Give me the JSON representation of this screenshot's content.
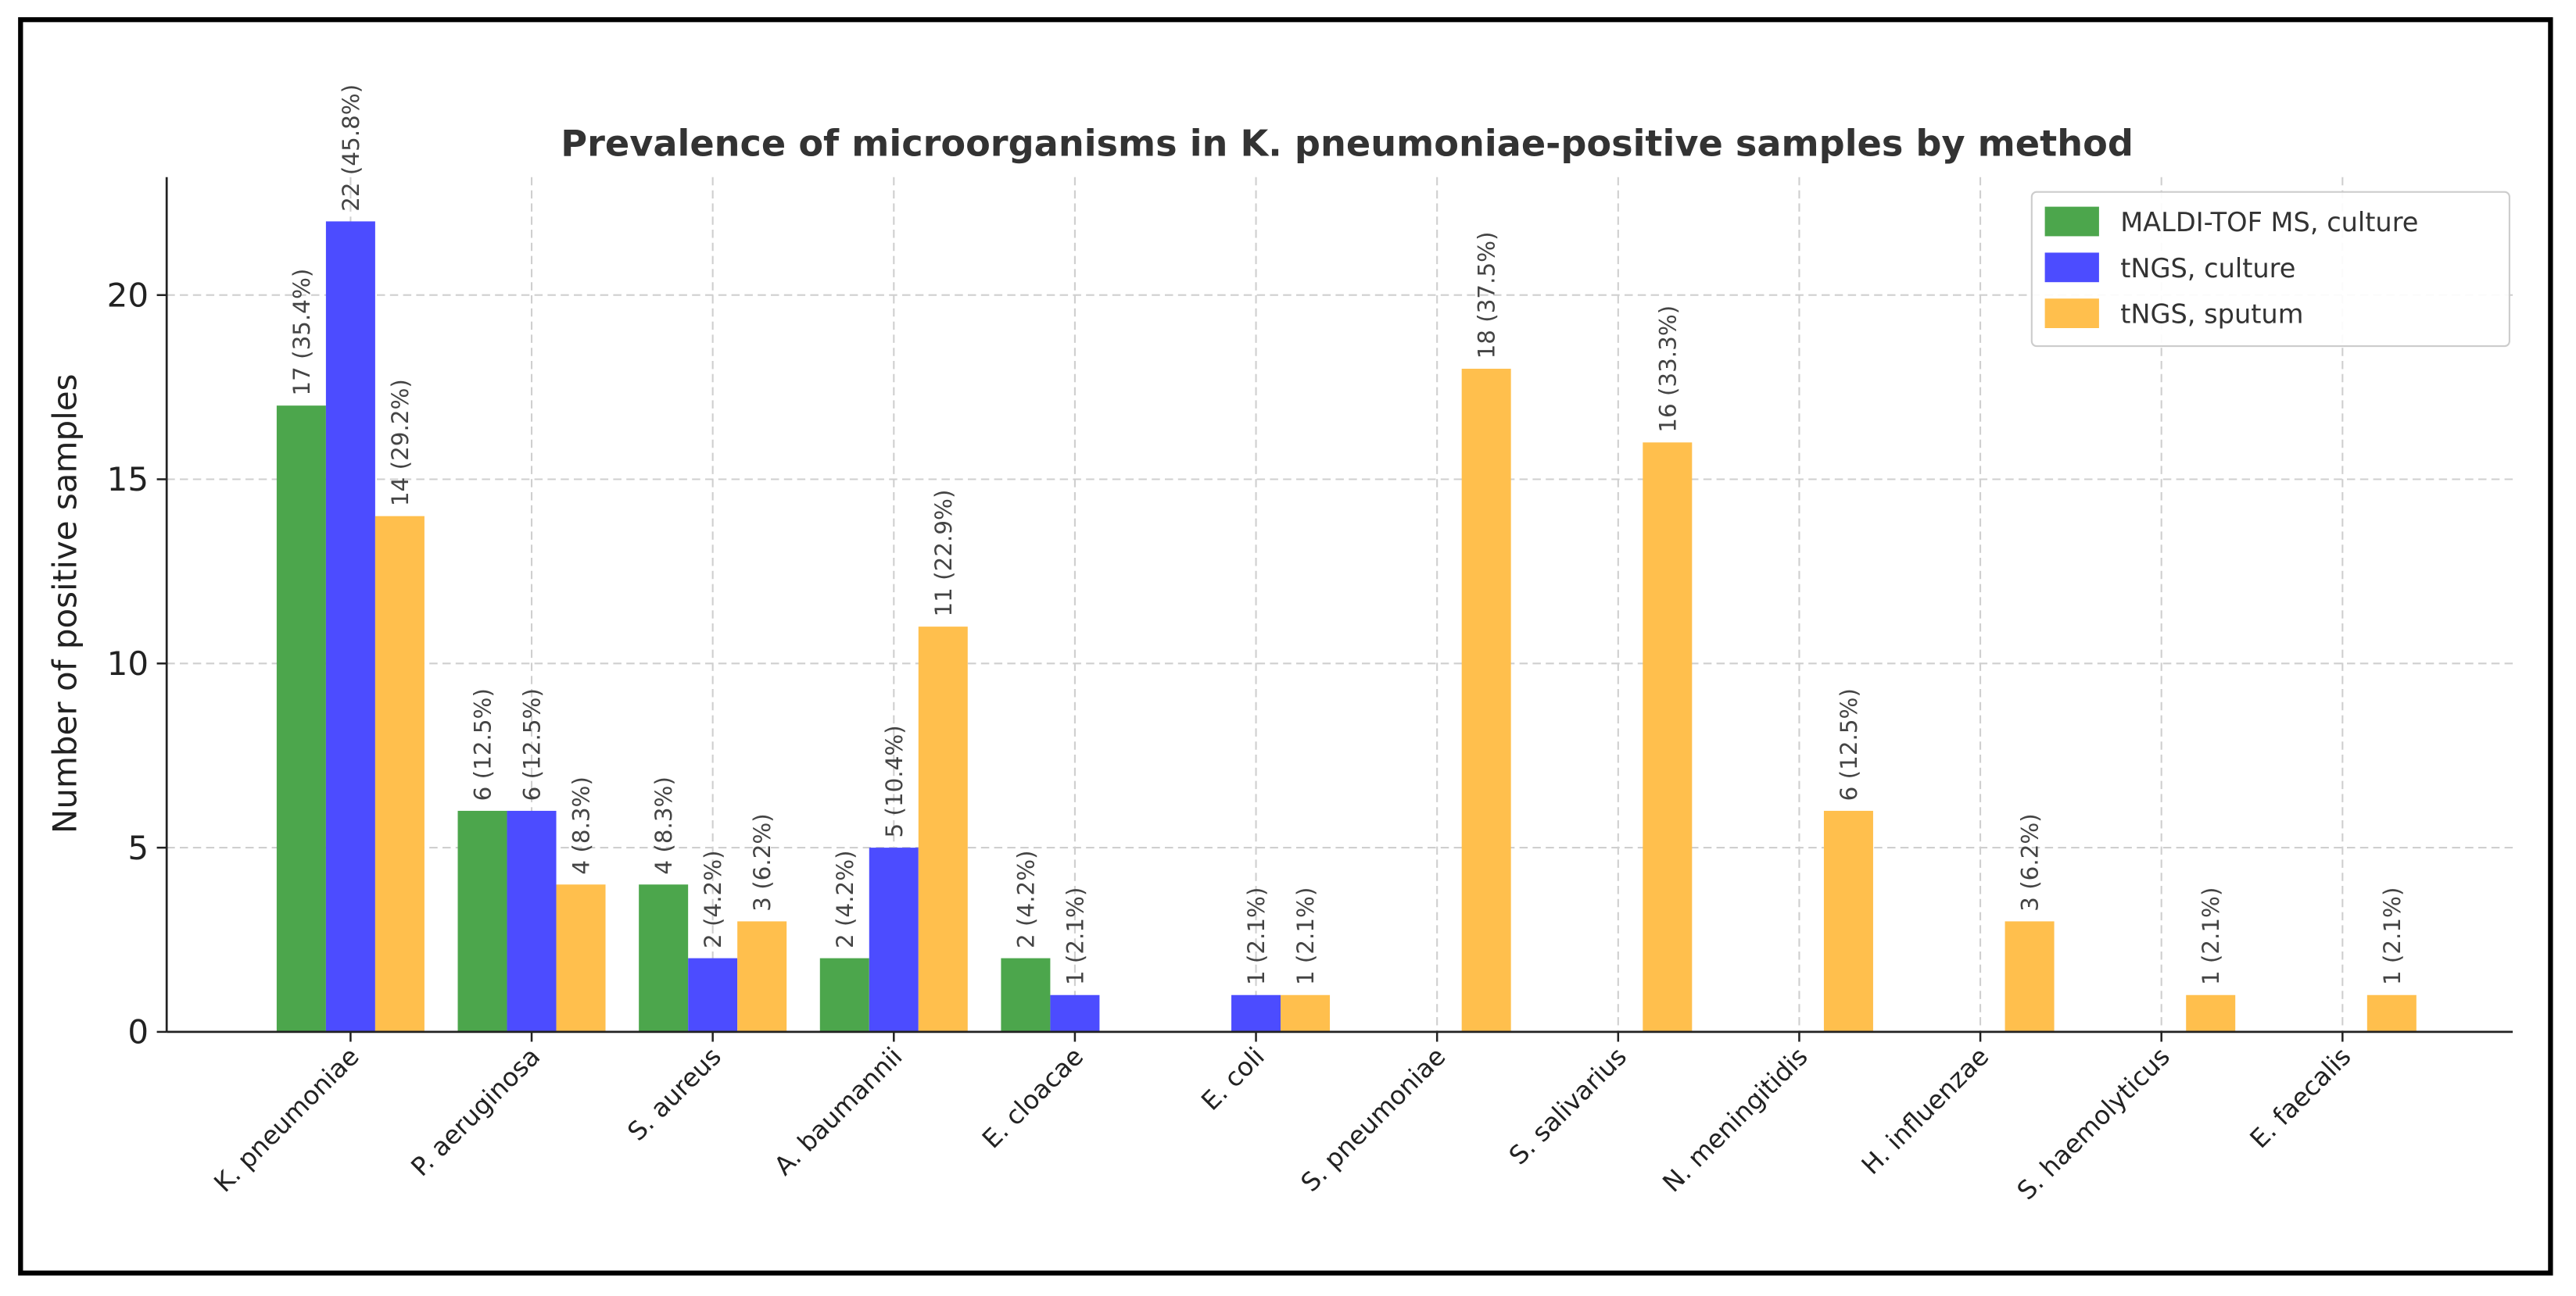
{
  "chart_data": {
    "type": "bar",
    "title": "Prevalence of microorganisms in K. pneumoniae-positive samples by method",
    "xlabel": "",
    "ylabel": "Number of positive samples",
    "ylim": [
      0,
      23.2
    ],
    "yticks": [
      0,
      5,
      10,
      15,
      20
    ],
    "grid": true,
    "legend_position": "top-right",
    "categories": [
      "K. pneumoniae",
      "P. aeruginosa",
      "S. aureus",
      "A. baumannii",
      "E. cloacae",
      "E. coli",
      "S. pneumoniae",
      "S. salivarius",
      "N. meningitidis",
      "H. influenzae",
      "S. haemolyticus",
      "E. faecalis"
    ],
    "series": [
      {
        "name": "MALDI-TOF MS, culture",
        "color": "#4ca64c",
        "values": [
          17,
          6,
          4,
          2,
          2,
          0,
          0,
          0,
          0,
          0,
          0,
          0
        ],
        "labels": [
          "17 (35.4%)",
          "6 (12.5%)",
          "4 (8.3%)",
          "2 (4.2%)",
          "2 (4.2%)",
          "",
          "",
          "",
          "",
          "",
          "",
          ""
        ]
      },
      {
        "name": "tNGS, culture",
        "color": "#4c4cff",
        "values": [
          22,
          6,
          2,
          5,
          1,
          1,
          0,
          0,
          0,
          0,
          0,
          0
        ],
        "labels": [
          "22 (45.8%)",
          "6 (12.5%)",
          "2 (4.2%)",
          "5 (10.4%)",
          "1 (2.1%)",
          "1 (2.1%)",
          "",
          "",
          "",
          "",
          "",
          ""
        ]
      },
      {
        "name": "tNGS, sputum",
        "color": "#ffbf4d",
        "values": [
          14,
          4,
          3,
          11,
          0,
          1,
          18,
          16,
          6,
          3,
          1,
          1
        ],
        "labels": [
          "14 (29.2%)",
          "4 (8.3%)",
          "3 (6.2%)",
          "11 (22.9%)",
          "",
          "1 (2.1%)",
          "18 (37.5%)",
          "16 (33.3%)",
          "6 (12.5%)",
          "3 (6.2%)",
          "1 (2.1%)",
          "1 (2.1%)"
        ]
      }
    ]
  }
}
